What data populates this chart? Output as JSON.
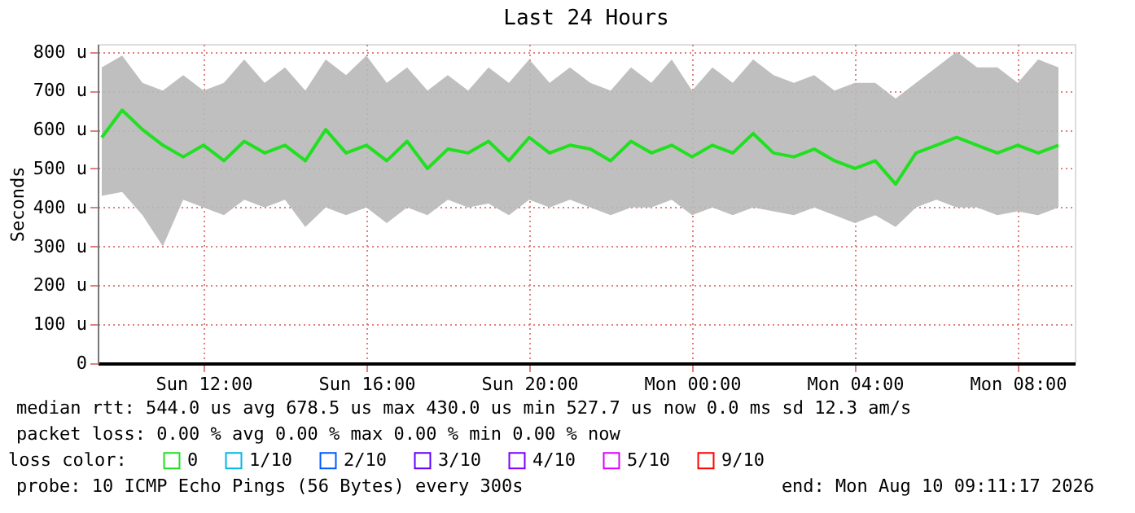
{
  "chart_data": {
    "type": "line",
    "title": "Last 24 Hours",
    "ylabel": "Seconds",
    "x": [
      "2026-08-09T09:30",
      "2026-08-09T10:00",
      "2026-08-09T10:30",
      "2026-08-09T11:00",
      "2026-08-09T11:30",
      "2026-08-09T12:00",
      "2026-08-09T12:30",
      "2026-08-09T13:00",
      "2026-08-09T13:30",
      "2026-08-09T14:00",
      "2026-08-09T14:30",
      "2026-08-09T15:00",
      "2026-08-09T15:30",
      "2026-08-09T16:00",
      "2026-08-09T16:30",
      "2026-08-09T17:00",
      "2026-08-09T17:30",
      "2026-08-09T18:00",
      "2026-08-09T18:30",
      "2026-08-09T19:00",
      "2026-08-09T19:30",
      "2026-08-09T20:00",
      "2026-08-09T20:30",
      "2026-08-09T21:00",
      "2026-08-09T21:30",
      "2026-08-09T22:00",
      "2026-08-09T22:30",
      "2026-08-09T23:00",
      "2026-08-09T23:30",
      "2026-08-10T00:00",
      "2026-08-10T00:30",
      "2026-08-10T01:00",
      "2026-08-10T01:30",
      "2026-08-10T02:00",
      "2026-08-10T02:30",
      "2026-08-10T03:00",
      "2026-08-10T03:30",
      "2026-08-10T04:00",
      "2026-08-10T04:30",
      "2026-08-10T05:00",
      "2026-08-10T05:30",
      "2026-08-10T06:00",
      "2026-08-10T06:30",
      "2026-08-10T07:00",
      "2026-08-10T07:30",
      "2026-08-10T08:00",
      "2026-08-10T08:30",
      "2026-08-10T09:00"
    ],
    "xlim": [
      "2026-08-09T09:24",
      "2026-08-10T09:24"
    ],
    "xticks": [
      {
        "value": "2026-08-09T12:00",
        "label": "Sun 12:00"
      },
      {
        "value": "2026-08-09T16:00",
        "label": "Sun 16:00"
      },
      {
        "value": "2026-08-09T20:00",
        "label": "Sun 20:00"
      },
      {
        "value": "2026-08-10T00:00",
        "label": "Mon 00:00"
      },
      {
        "value": "2026-08-10T04:00",
        "label": "Mon 04:00"
      },
      {
        "value": "2026-08-10T08:00",
        "label": "Mon 08:00"
      }
    ],
    "ylim": [
      0,
      820
    ],
    "yticks": [
      0,
      {
        "value": 100,
        "label": "100 u"
      },
      {
        "value": 200,
        "label": "200 u"
      },
      {
        "value": 300,
        "label": "300 u"
      },
      {
        "value": 400,
        "label": "400 u"
      },
      {
        "value": 500,
        "label": "500 u"
      },
      {
        "value": 600,
        "label": "600 u"
      },
      {
        "value": 700,
        "label": "700 u"
      },
      {
        "value": 800,
        "label": "800 u"
      }
    ],
    "legend_title": "loss color:",
    "series": [
      {
        "name": "0",
        "color": "#20e020",
        "values": [
          580,
          650,
          600,
          560,
          530,
          560,
          520,
          570,
          540,
          560,
          520,
          600,
          540,
          560,
          520,
          570,
          500,
          550,
          540,
          570,
          520,
          580,
          540,
          560,
          550,
          520,
          570,
          540,
          560,
          530,
          560,
          540,
          590,
          540,
          530,
          550,
          520,
          500,
          520,
          460,
          540,
          560,
          580,
          560,
          540,
          560,
          540,
          560
        ],
        "lower": [
          430,
          440,
          380,
          300,
          420,
          400,
          380,
          420,
          400,
          420,
          350,
          400,
          380,
          400,
          360,
          400,
          380,
          420,
          400,
          410,
          380,
          420,
          400,
          420,
          400,
          380,
          400,
          400,
          420,
          380,
          400,
          380,
          400,
          390,
          380,
          400,
          380,
          360,
          380,
          350,
          400,
          420,
          400,
          400,
          380,
          390,
          380,
          400
        ],
        "upper": [
          760,
          790,
          720,
          700,
          740,
          700,
          720,
          780,
          720,
          760,
          700,
          780,
          740,
          790,
          720,
          760,
          700,
          740,
          700,
          760,
          720,
          780,
          720,
          760,
          720,
          700,
          760,
          720,
          780,
          700,
          760,
          720,
          780,
          740,
          720,
          740,
          700,
          720,
          720,
          680,
          720,
          760,
          800,
          760,
          760,
          720,
          780,
          760
        ]
      },
      {
        "name": "1/10",
        "color": "#00b8e8",
        "values": [
          null,
          null,
          null,
          null,
          null,
          null,
          null,
          null,
          null,
          null,
          null,
          null,
          null,
          null,
          null,
          null,
          null,
          null,
          null,
          null,
          null,
          null,
          null,
          null,
          null,
          null,
          null,
          null,
          null,
          null,
          null,
          null,
          null,
          null,
          null,
          null,
          null,
          null,
          null,
          null,
          null,
          null,
          null,
          null,
          null,
          null,
          null,
          null
        ]
      },
      {
        "name": "2/10",
        "color": "#0059ff",
        "values": [
          null,
          null,
          null,
          null,
          null,
          null,
          null,
          null,
          null,
          null,
          null,
          null,
          null,
          null,
          null,
          null,
          null,
          null,
          null,
          null,
          null,
          null,
          null,
          null,
          null,
          null,
          null,
          null,
          null,
          null,
          null,
          null,
          null,
          null,
          null,
          null,
          null,
          null,
          null,
          null,
          null,
          null,
          null,
          null,
          null,
          null,
          null,
          null
        ]
      },
      {
        "name": "3/10",
        "color": "#5e00ff",
        "values": [
          null,
          null,
          null,
          null,
          null,
          null,
          null,
          null,
          null,
          null,
          null,
          null,
          null,
          null,
          null,
          null,
          null,
          null,
          null,
          null,
          null,
          null,
          null,
          null,
          null,
          null,
          null,
          null,
          null,
          null,
          null,
          null,
          null,
          null,
          null,
          null,
          null,
          null,
          null,
          null,
          null,
          null,
          null,
          null,
          null,
          null,
          null,
          null
        ]
      },
      {
        "name": "4/10",
        "color": "#7e00ff",
        "values": [
          null,
          null,
          null,
          null,
          null,
          null,
          null,
          null,
          null,
          null,
          null,
          null,
          null,
          null,
          null,
          null,
          null,
          null,
          null,
          null,
          null,
          null,
          null,
          null,
          null,
          null,
          null,
          null,
          null,
          null,
          null,
          null,
          null,
          null,
          null,
          null,
          null,
          null,
          null,
          null,
          null,
          null,
          null,
          null,
          null,
          null,
          null,
          null
        ]
      },
      {
        "name": "5/10",
        "color": "#dd00ff",
        "values": [
          null,
          null,
          null,
          null,
          null,
          null,
          null,
          null,
          null,
          null,
          null,
          null,
          null,
          null,
          null,
          null,
          null,
          null,
          null,
          null,
          null,
          null,
          null,
          null,
          null,
          null,
          null,
          null,
          null,
          null,
          null,
          null,
          null,
          null,
          null,
          null,
          null,
          null,
          null,
          null,
          null,
          null,
          null,
          null,
          null,
          null,
          null,
          null
        ]
      },
      {
        "name": "9/10",
        "color": "#ff0000",
        "values": [
          null,
          null,
          null,
          null,
          null,
          null,
          null,
          null,
          null,
          null,
          null,
          null,
          null,
          null,
          null,
          null,
          null,
          null,
          null,
          null,
          null,
          null,
          null,
          null,
          null,
          null,
          null,
          null,
          null,
          null,
          null,
          null,
          null,
          null,
          null,
          null,
          null,
          null,
          null,
          null,
          null,
          null,
          null,
          null,
          null,
          null,
          null,
          null
        ]
      }
    ],
    "grid": true,
    "legend": "bottom",
    "marker": "none",
    "line_style": "solid",
    "annotations": [
      "median rtt:  544.0 us avg  678.5 us max  430.0 us min  527.7 us now  0.0 ms sd  12.3  am/s",
      "packet loss: 0.00 % avg  0.00 % max  0.00 % min  0.00 % now",
      "probe:       10 ICMP Echo Pings (56 Bytes) every 300s",
      "end: Mon Aug 10 09:11:17 2026"
    ]
  }
}
